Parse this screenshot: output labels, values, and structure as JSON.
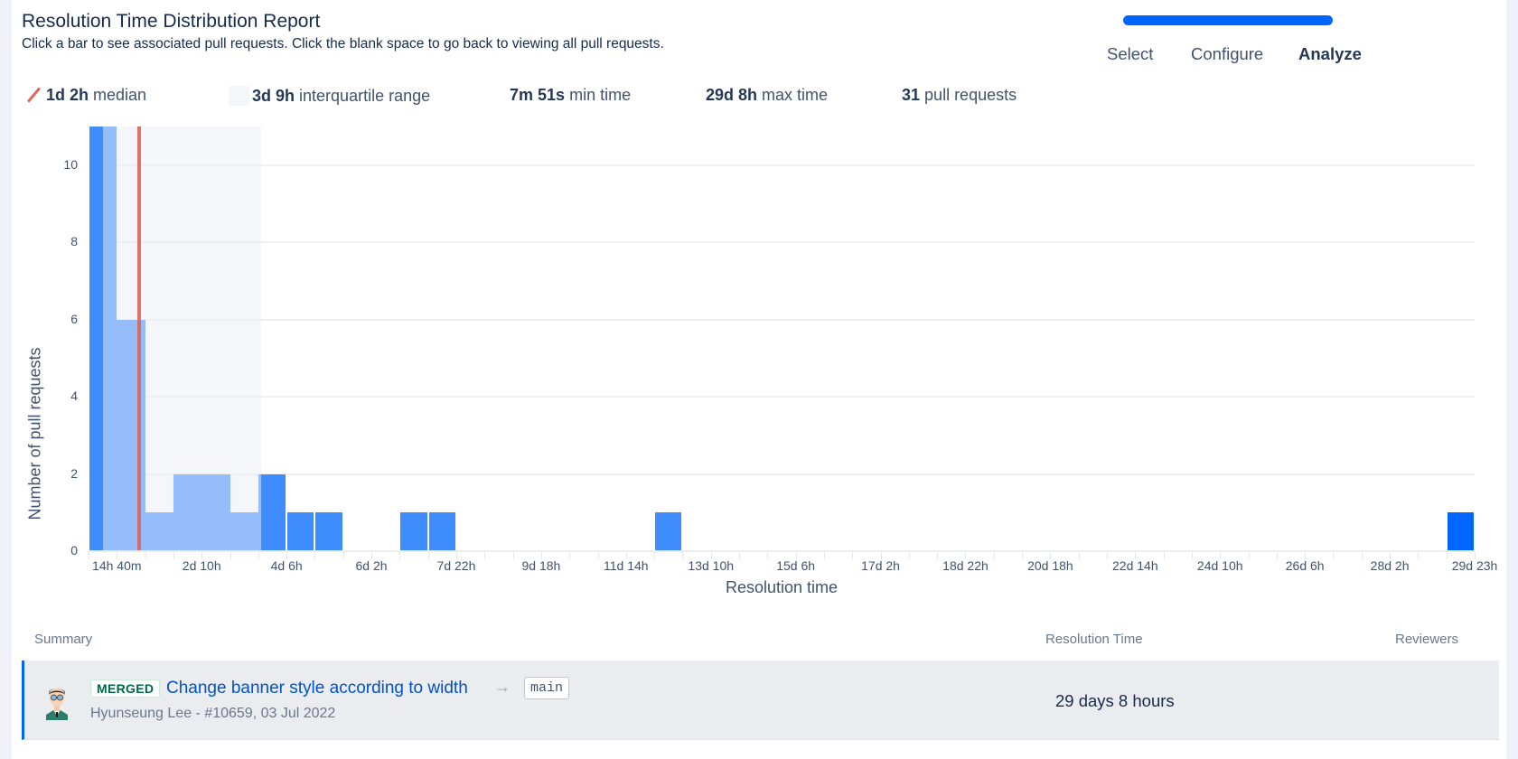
{
  "header": {
    "title": "Resolution Time Distribution Report",
    "subtitle": "Click a bar to see associated pull requests. Click the blank space to go back to viewing all pull requests."
  },
  "wizard": {
    "progress_color": "#0065ff",
    "steps": [
      {
        "label": "Select",
        "active": false
      },
      {
        "label": "Configure",
        "active": false
      },
      {
        "label": "Analyze",
        "active": true
      }
    ]
  },
  "stats": {
    "median": {
      "value": "1d 2h",
      "label": "median",
      "icon": "median-line-icon"
    },
    "iqr": {
      "value": "3d 9h",
      "label": "interquartile range",
      "icon": "iqr-swatch-icon"
    },
    "min": {
      "value": "7m 51s",
      "label": "min time"
    },
    "max": {
      "value": "29d 8h",
      "label": "max time"
    },
    "count": {
      "value": "31",
      "label": "pull requests"
    }
  },
  "colors": {
    "bar": "#3f8cff",
    "bar_in_iqr": "#95bdfb",
    "bar_selected": "#0066ff",
    "median_line": "#d9665b",
    "iqr_band": "#f4f6fa"
  },
  "chart_data": {
    "type": "bar",
    "title": "Resolution Time Distribution Report",
    "xlabel": "Resolution time",
    "ylabel": "Number of pull requests",
    "ylim": [
      0,
      11
    ],
    "yticks": [
      0,
      2,
      4,
      6,
      8,
      10
    ],
    "grid": true,
    "bin_count": 49,
    "xtick_labels": [
      "14h 40m",
      "2d 10h",
      "4d 6h",
      "6d 2h",
      "7d 22h",
      "9d 18h",
      "11d 14h",
      "13d 10h",
      "15d 6h",
      "17d 2h",
      "18d 22h",
      "20d 18h",
      "22d 14h",
      "24d 10h",
      "26d 6h",
      "28d 2h",
      "29d 23h"
    ],
    "values": [
      11,
      6,
      1,
      2,
      2,
      1,
      2,
      1,
      1,
      0,
      0,
      1,
      1,
      0,
      0,
      0,
      0,
      0,
      0,
      0,
      1,
      0,
      0,
      0,
      0,
      0,
      0,
      0,
      0,
      0,
      0,
      0,
      0,
      0,
      0,
      0,
      0,
      0,
      0,
      0,
      0,
      0,
      0,
      0,
      0,
      0,
      0,
      0,
      1
    ],
    "selected_bin": 48,
    "median": "1d 2h",
    "median_bin_position": 1.8,
    "iqr_bin_range": [
      0.5,
      6.1
    ],
    "annotations": [
      "median line",
      "interquartile range band"
    ]
  },
  "table": {
    "columns": [
      "Summary",
      "Resolution Time",
      "Reviewers"
    ],
    "rows": [
      {
        "status": "MERGED",
        "title": "Change banner style according to width",
        "arrow": "→",
        "target_branch": "main",
        "meta": "Hyunseung Lee - #10659, 03 Jul 2022",
        "resolution_time": "29 days 8 hours",
        "reviewers": ""
      }
    ]
  }
}
